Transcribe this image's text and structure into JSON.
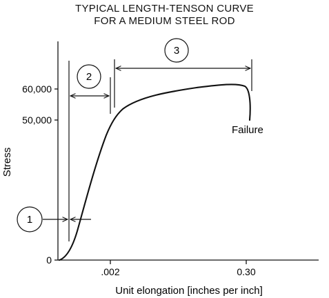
{
  "chart_data": {
    "type": "line",
    "title_lines": [
      "TYPICAL LENGTH-TENSON CURVE",
      "FOR A MEDIUM STEEL ROD"
    ],
    "xlabel": "Unit elongation [inches per inch]",
    "ylabel": "Stress",
    "x_ticks": [
      {
        "label": ".002",
        "at": "low-strain"
      },
      {
        "label": "0.30",
        "at": "high-strain"
      }
    ],
    "y_ticks": [
      {
        "label": "0",
        "value": 0
      },
      {
        "label": "50,000",
        "value": 50000
      },
      {
        "label": "60,000",
        "value": 60000
      }
    ],
    "grid": false,
    "curve_color": "#111111",
    "annotations": {
      "failure_label": "Failure",
      "region_labels": [
        "1",
        "2",
        "3"
      ]
    }
  }
}
